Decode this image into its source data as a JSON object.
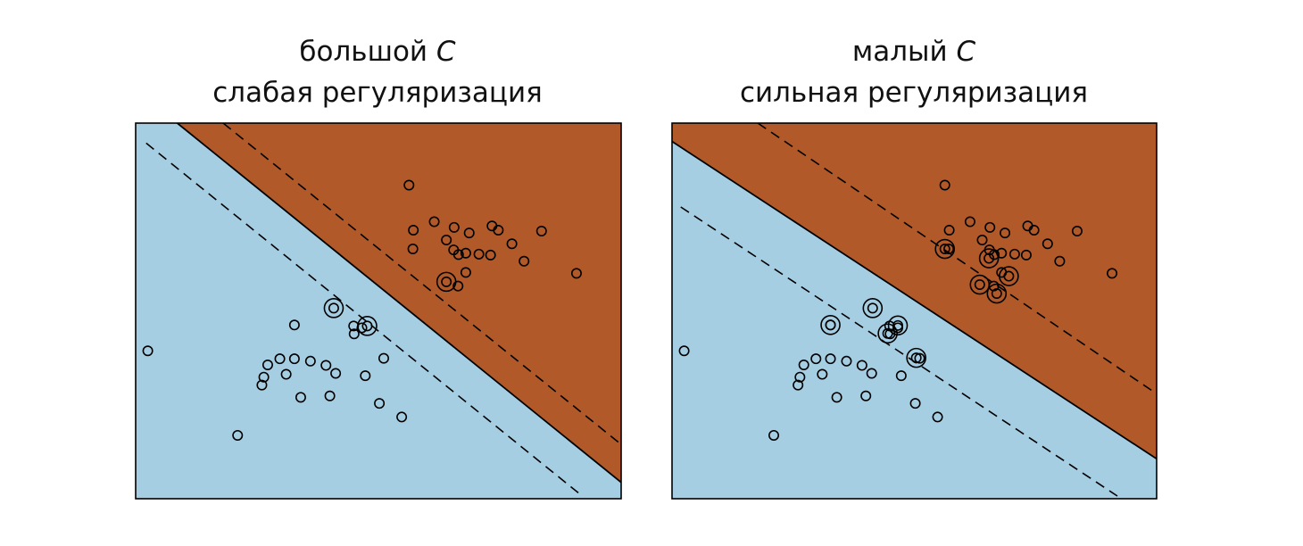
{
  "chart_data": [
    {
      "type": "scatter",
      "title_main": "большой",
      "title_var": "C",
      "title_sub": "слабая регуляризация",
      "xlim": [
        0,
        10
      ],
      "ylim": [
        0,
        8
      ],
      "grid": false,
      "colors": {
        "class_low": "#a6cee3",
        "class_high": "#b15928",
        "boundary": "#000000",
        "point_edge": "#000000"
      },
      "decision_boundary": [
        [
          0.857,
          8.0
        ],
        [
          10.0,
          0.348
        ]
      ],
      "margin_lines": [
        [
          [
            1.803,
            8.0
          ],
          [
            10.0,
            1.156
          ]
        ],
        [
          [
            0.217,
            7.574
          ],
          [
            9.185,
            0.069
          ]
        ]
      ],
      "points": [
        [
          5.63,
          6.68
        ],
        [
          6.15,
          5.9
        ],
        [
          6.56,
          5.78
        ],
        [
          5.72,
          5.72
        ],
        [
          6.4,
          5.51
        ],
        [
          7.47,
          5.72
        ],
        [
          6.55,
          5.3
        ],
        [
          7.34,
          5.81
        ],
        [
          6.87,
          5.66
        ],
        [
          7.75,
          5.43
        ],
        [
          5.71,
          5.32
        ],
        [
          6.65,
          5.2
        ],
        [
          6.8,
          5.23
        ],
        [
          7.07,
          5.21
        ],
        [
          8.0,
          5.06
        ],
        [
          7.31,
          5.19
        ],
        [
          8.36,
          5.7
        ],
        [
          6.8,
          4.82
        ],
        [
          9.08,
          4.8
        ],
        [
          6.64,
          4.53
        ],
        [
          4.49,
          3.68
        ],
        [
          4.66,
          3.64
        ],
        [
          3.27,
          3.7
        ],
        [
          0.25,
          3.15
        ],
        [
          4.5,
          3.51
        ],
        [
          5.11,
          2.99
        ],
        [
          2.72,
          2.85
        ],
        [
          2.97,
          2.98
        ],
        [
          3.27,
          2.98
        ],
        [
          3.6,
          2.93
        ],
        [
          3.92,
          2.84
        ],
        [
          4.12,
          2.67
        ],
        [
          2.64,
          2.59
        ],
        [
          3.1,
          2.65
        ],
        [
          4.73,
          2.62
        ],
        [
          2.6,
          2.42
        ],
        [
          3.4,
          2.16
        ],
        [
          4.0,
          2.19
        ],
        [
          5.02,
          2.03
        ],
        [
          5.48,
          1.74
        ],
        [
          2.1,
          1.35
        ]
      ],
      "support_vectors": [
        [
          6.4,
          4.62
        ],
        [
          4.08,
          4.06
        ],
        [
          4.77,
          3.68
        ]
      ]
    },
    {
      "type": "scatter",
      "title_main": "малый",
      "title_var": "C",
      "title_sub": "сильная регуляризация",
      "xlim": [
        0,
        10
      ],
      "ylim": [
        0,
        8
      ],
      "grid": false,
      "colors": {
        "class_low": "#a6cee3",
        "class_high": "#b15928",
        "boundary": "#000000",
        "point_edge": "#000000"
      },
      "decision_boundary": [
        [
          0.0,
          7.61
        ],
        [
          10.0,
          0.85
        ]
      ],
      "margin_lines": [
        [
          [
            1.77,
            8.0
          ],
          [
            10.0,
            2.235
          ]
        ],
        [
          [
            0.18,
            6.214
          ],
          [
            9.19,
            0.057
          ]
        ]
      ],
      "points": [
        [
          5.63,
          6.68
        ],
        [
          6.15,
          5.9
        ],
        [
          6.56,
          5.78
        ],
        [
          5.72,
          5.72
        ],
        [
          6.4,
          5.51
        ],
        [
          7.47,
          5.72
        ],
        [
          6.55,
          5.3
        ],
        [
          7.34,
          5.81
        ],
        [
          6.87,
          5.66
        ],
        [
          7.75,
          5.43
        ],
        [
          5.71,
          5.32
        ],
        [
          6.65,
          5.2
        ],
        [
          6.8,
          5.23
        ],
        [
          7.07,
          5.21
        ],
        [
          8.0,
          5.06
        ],
        [
          7.31,
          5.19
        ],
        [
          8.36,
          5.7
        ],
        [
          6.8,
          4.82
        ],
        [
          9.08,
          4.8
        ],
        [
          6.64,
          4.53
        ],
        [
          4.49,
          3.68
        ],
        [
          4.66,
          3.64
        ],
        [
          3.27,
          3.7
        ],
        [
          0.25,
          3.15
        ],
        [
          4.5,
          3.51
        ],
        [
          5.11,
          2.99
        ],
        [
          2.72,
          2.85
        ],
        [
          2.97,
          2.98
        ],
        [
          3.27,
          2.98
        ],
        [
          3.6,
          2.93
        ],
        [
          3.92,
          2.84
        ],
        [
          4.12,
          2.67
        ],
        [
          2.64,
          2.59
        ],
        [
          3.1,
          2.65
        ],
        [
          4.73,
          2.62
        ],
        [
          2.6,
          2.42
        ],
        [
          3.4,
          2.16
        ],
        [
          4.0,
          2.19
        ],
        [
          5.02,
          2.03
        ],
        [
          5.48,
          1.74
        ],
        [
          2.1,
          1.35
        ]
      ],
      "support_vectors": [
        [
          5.63,
          5.32
        ],
        [
          6.54,
          5.12
        ],
        [
          6.95,
          4.74
        ],
        [
          6.35,
          4.56
        ],
        [
          6.7,
          4.37
        ],
        [
          4.14,
          4.06
        ],
        [
          3.27,
          3.7
        ],
        [
          4.66,
          3.69
        ],
        [
          4.45,
          3.52
        ],
        [
          5.04,
          3.0
        ]
      ]
    }
  ]
}
